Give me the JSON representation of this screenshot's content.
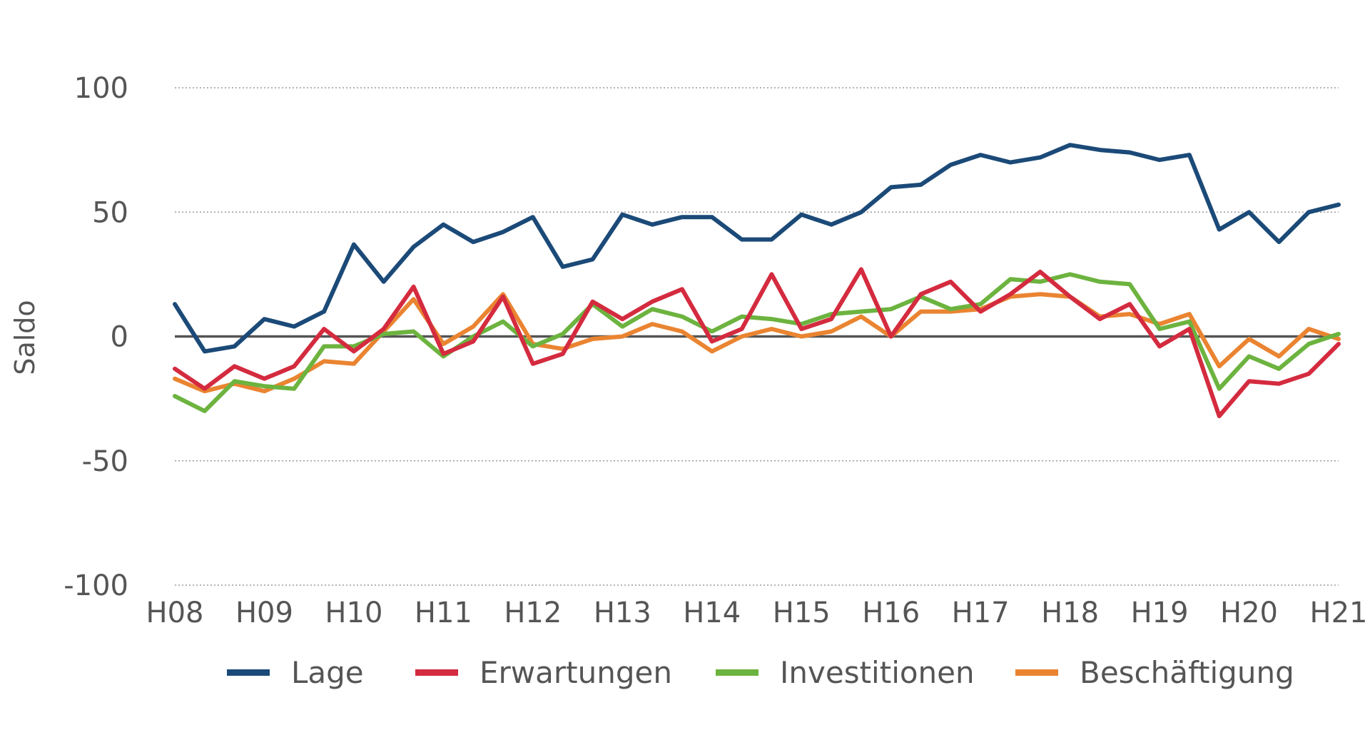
{
  "chart_data": {
    "type": "line",
    "ylabel": "Saldo",
    "xlabel": "",
    "ylim": [
      -100,
      100
    ],
    "yticks": [
      "100",
      "50",
      "0",
      "-50",
      "-100"
    ],
    "ytick_values": [
      100,
      50,
      0,
      -50,
      -100
    ],
    "xtick_labels": [
      "H08",
      "H09",
      "H10",
      "H11",
      "H12",
      "H13",
      "H14",
      "H15",
      "H16",
      "H17",
      "H18",
      "H19",
      "H20",
      "H21"
    ],
    "grid": "horizontal dotted",
    "legend_position": "bottom",
    "series": [
      {
        "name": "Lage",
        "color": "#1b4a78",
        "values": [
          13,
          -6,
          -4,
          7,
          4,
          10,
          37,
          22,
          36,
          45,
          38,
          42,
          48,
          28,
          31,
          49,
          45,
          48,
          48,
          39,
          39,
          49,
          45,
          50,
          60,
          61,
          69,
          73,
          70,
          72,
          77,
          75,
          74,
          71,
          73,
          43,
          50,
          38,
          50,
          53
        ]
      },
      {
        "name": "Erwartungen",
        "color": "#d42b3f",
        "values": [
          -13,
          -21,
          -12,
          -17,
          -12,
          3,
          -6,
          3,
          20,
          -7,
          -2,
          16,
          -11,
          -7,
          14,
          7,
          14,
          19,
          -2,
          3,
          25,
          3,
          7,
          27,
          0,
          17,
          22,
          10,
          17,
          26,
          16,
          7,
          13,
          -4,
          3,
          -32,
          -18,
          -19,
          -15,
          -3
        ]
      },
      {
        "name": "Investitionen",
        "color": "#6cb33f",
        "values": [
          -24,
          -30,
          -18,
          -20,
          -21,
          -4,
          -4,
          1,
          2,
          -8,
          0,
          6,
          -4,
          1,
          13,
          4,
          11,
          8,
          2,
          8,
          7,
          5,
          9,
          10,
          11,
          16,
          11,
          13,
          23,
          22,
          25,
          22,
          21,
          3,
          6,
          -21,
          -8,
          -13,
          -3,
          1
        ]
      },
      {
        "name": "Beschäftigung",
        "color": "#ea8431",
        "values": [
          -17,
          -22,
          -19,
          -22,
          -17,
          -10,
          -11,
          2,
          15,
          -3,
          4,
          17,
          -3,
          -5,
          -1,
          0,
          5,
          2,
          -6,
          0,
          3,
          0,
          2,
          8,
          0,
          10,
          10,
          11,
          16,
          17,
          16,
          8,
          9,
          5,
          9,
          -12,
          -1,
          -8,
          3,
          -1
        ]
      }
    ]
  }
}
